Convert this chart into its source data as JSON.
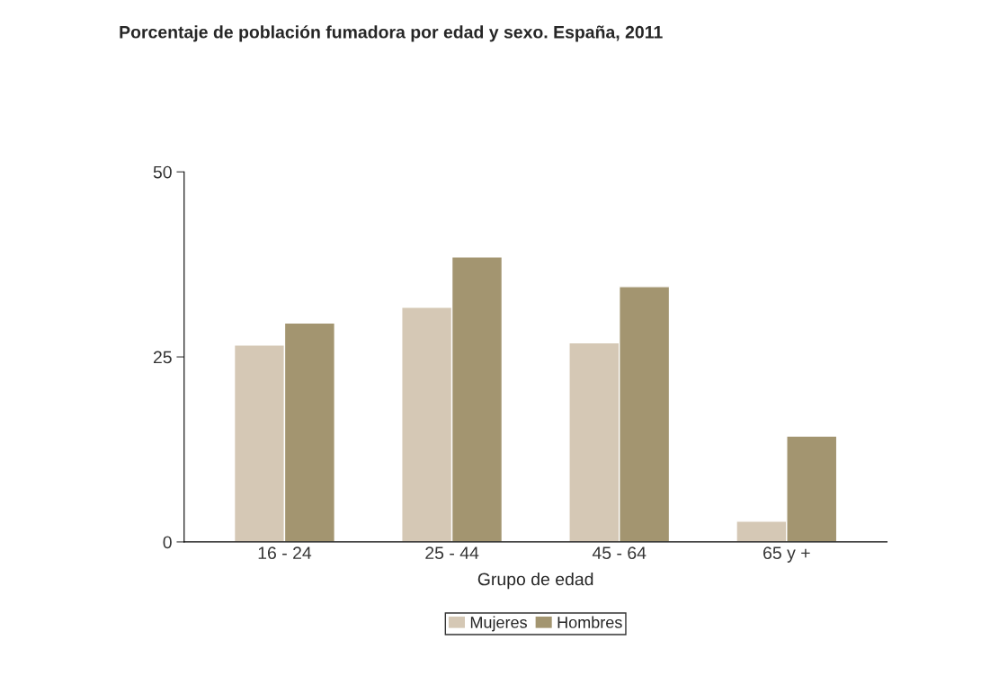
{
  "chart_data": {
    "type": "bar",
    "title": "Porcentaje de población fumadora por edad y sexo. España, 2011",
    "xlabel": "Grupo de edad",
    "categories": [
      "16 - 24",
      "25 - 44",
      "45 - 64",
      "65 y +"
    ],
    "series": [
      {
        "name": "Mujeres",
        "color": "#d5c8b5",
        "values": [
          26.6,
          31.7,
          26.9,
          2.8
        ]
      },
      {
        "name": "Hombres",
        "color": "#a39570",
        "values": [
          29.6,
          38.5,
          34.5,
          14.3
        ]
      }
    ],
    "ylim": [
      0,
      50
    ],
    "yticks": [
      0,
      25,
      50
    ],
    "grid": false,
    "legend": "bottom"
  }
}
